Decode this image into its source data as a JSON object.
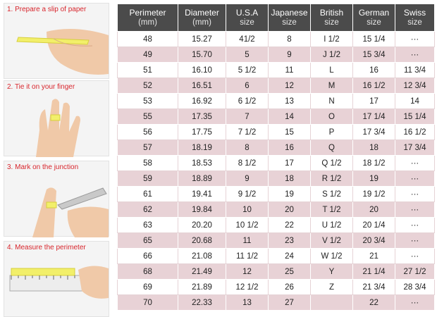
{
  "steps": [
    "1. Prepare a slip of paper",
    "2. Tie it on your finger",
    "3. Mark on the junction",
    "4. Measure the perimeter"
  ],
  "table": {
    "headers": [
      {
        "title": "Perimeter",
        "unit": "(mm)"
      },
      {
        "title": "Diameter",
        "unit": "(mm)"
      },
      {
        "title": "U.S.A",
        "unit": "size"
      },
      {
        "title": "Japanese",
        "unit": "size"
      },
      {
        "title": "British",
        "unit": "size"
      },
      {
        "title": "German",
        "unit": "size"
      },
      {
        "title": "Swiss",
        "unit": "size"
      }
    ],
    "rows": [
      [
        "48",
        "15.27",
        "41/2",
        "8",
        "I 1/2",
        "15 1/4",
        "···"
      ],
      [
        "49",
        "15.70",
        "5",
        "9",
        "J 1/2",
        "15 3/4",
        "···"
      ],
      [
        "51",
        "16.10",
        "5 1/2",
        "11",
        "L",
        "16",
        "11 3/4"
      ],
      [
        "52",
        "16.51",
        "6",
        "12",
        "M",
        "16 1/2",
        "12 3/4"
      ],
      [
        "53",
        "16.92",
        "6 1/2",
        "13",
        "N",
        "17",
        "14"
      ],
      [
        "55",
        "17.35",
        "7",
        "14",
        "O",
        "17 1/4",
        "15 1/4"
      ],
      [
        "56",
        "17.75",
        "7 1/2",
        "15",
        "P",
        "17 3/4",
        "16 1/2"
      ],
      [
        "57",
        "18.19",
        "8",
        "16",
        "Q",
        "18",
        "17 3/4"
      ],
      [
        "58",
        "18.53",
        "8 1/2",
        "17",
        "Q 1/2",
        "18 1/2",
        "···"
      ],
      [
        "59",
        "18.89",
        "9",
        "18",
        "R 1/2",
        "19",
        "···"
      ],
      [
        "61",
        "19.41",
        "9 1/2",
        "19",
        "S 1/2",
        "19 1/2",
        "···"
      ],
      [
        "62",
        "19.84",
        "10",
        "20",
        "T 1/2",
        "20",
        "···"
      ],
      [
        "63",
        "20.20",
        "10 1/2",
        "22",
        "U 1/2",
        "20 1/4",
        "···"
      ],
      [
        "65",
        "20.68",
        "11",
        "23",
        "V 1/2",
        "20 3/4",
        "···"
      ],
      [
        "66",
        "21.08",
        "11 1/2",
        "24",
        "W 1/2",
        "21",
        "···"
      ],
      [
        "68",
        "21.49",
        "12",
        "25",
        "Y",
        "21 1/4",
        "27 1/2"
      ],
      [
        "69",
        "21.89",
        "12 1/2",
        "26",
        "Z",
        "21 3/4",
        "28 3/4"
      ],
      [
        "70",
        "22.33",
        "13",
        "27",
        null,
        "22",
        "···"
      ]
    ]
  }
}
